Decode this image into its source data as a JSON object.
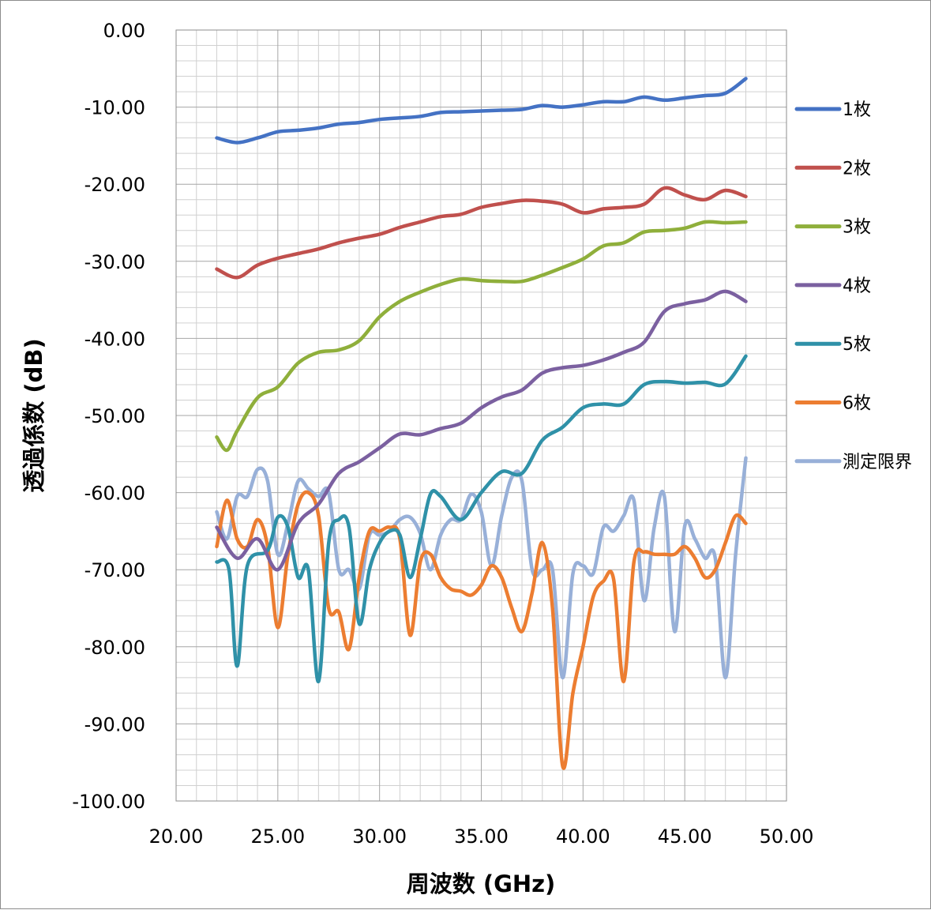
{
  "chart_data": {
    "type": "line",
    "xlabel": "周波数 (GHz)",
    "ylabel": "透過係数 (dB)",
    "xlim": [
      20,
      50
    ],
    "ylim": [
      -100,
      0
    ],
    "x_ticks": [
      "20.00",
      "25.00",
      "30.00",
      "35.00",
      "40.00",
      "45.00",
      "50.00"
    ],
    "y_ticks": [
      "0.00",
      "-10.00",
      "-20.00",
      "-30.00",
      "-40.00",
      "-50.00",
      "-60.00",
      "-70.00",
      "-80.00",
      "-90.00",
      "-100.00"
    ],
    "grid": true,
    "legend_position": "right",
    "series": [
      {
        "name": "1枚",
        "color": "#4472c4",
        "points": [
          [
            22,
            -14
          ],
          [
            23,
            -14.6
          ],
          [
            24,
            -14
          ],
          [
            25,
            -13.2
          ],
          [
            26,
            -13
          ],
          [
            27,
            -12.7
          ],
          [
            28,
            -12.2
          ],
          [
            29,
            -12
          ],
          [
            30,
            -11.6
          ],
          [
            31,
            -11.4
          ],
          [
            32,
            -11.2
          ],
          [
            33,
            -10.7
          ],
          [
            34,
            -10.6
          ],
          [
            35,
            -10.5
          ],
          [
            36,
            -10.4
          ],
          [
            37,
            -10.3
          ],
          [
            38,
            -9.8
          ],
          [
            39,
            -10
          ],
          [
            40,
            -9.7
          ],
          [
            41,
            -9.3
          ],
          [
            42,
            -9.3
          ],
          [
            43,
            -8.7
          ],
          [
            44,
            -9.1
          ],
          [
            45,
            -8.8
          ],
          [
            46,
            -8.5
          ],
          [
            47,
            -8.2
          ],
          [
            48,
            -6.3
          ]
        ]
      },
      {
        "name": "2枚",
        "color": "#c0504d",
        "points": [
          [
            22,
            -31
          ],
          [
            23,
            -32.1
          ],
          [
            24,
            -30.5
          ],
          [
            25,
            -29.6
          ],
          [
            26,
            -29
          ],
          [
            27,
            -28.4
          ],
          [
            28,
            -27.6
          ],
          [
            29,
            -27
          ],
          [
            30,
            -26.5
          ],
          [
            31,
            -25.6
          ],
          [
            32,
            -24.9
          ],
          [
            33,
            -24.2
          ],
          [
            34,
            -23.9
          ],
          [
            35,
            -23
          ],
          [
            36,
            -22.5
          ],
          [
            37,
            -22.1
          ],
          [
            38,
            -22.2
          ],
          [
            39,
            -22.6
          ],
          [
            40,
            -23.7
          ],
          [
            41,
            -23.2
          ],
          [
            42,
            -23
          ],
          [
            43,
            -22.6
          ],
          [
            44,
            -20.5
          ],
          [
            45,
            -21.4
          ],
          [
            46,
            -22
          ],
          [
            47,
            -20.8
          ],
          [
            48,
            -21.6
          ]
        ]
      },
      {
        "name": "3枚",
        "color": "#8faf3b",
        "points": [
          [
            22,
            -52.8
          ],
          [
            22.5,
            -54.5
          ],
          [
            23,
            -52
          ],
          [
            24,
            -47.7
          ],
          [
            25,
            -46.3
          ],
          [
            26,
            -43.2
          ],
          [
            27,
            -41.8
          ],
          [
            28,
            -41.5
          ],
          [
            29,
            -40.3
          ],
          [
            30,
            -37.2
          ],
          [
            31,
            -35.2
          ],
          [
            32,
            -34
          ],
          [
            33,
            -33
          ],
          [
            34,
            -32.3
          ],
          [
            35,
            -32.5
          ],
          [
            36,
            -32.6
          ],
          [
            37,
            -32.6
          ],
          [
            38,
            -31.8
          ],
          [
            39,
            -30.8
          ],
          [
            40,
            -29.7
          ],
          [
            41,
            -28
          ],
          [
            42,
            -27.6
          ],
          [
            43,
            -26.2
          ],
          [
            44,
            -26
          ],
          [
            45,
            -25.7
          ],
          [
            46,
            -24.9
          ],
          [
            47,
            -25
          ],
          [
            48,
            -24.9
          ]
        ]
      },
      {
        "name": "4枚",
        "color": "#7b60a0",
        "points": [
          [
            22,
            -64.5
          ],
          [
            23,
            -68.5
          ],
          [
            24,
            -66
          ],
          [
            25,
            -70
          ],
          [
            26,
            -64
          ],
          [
            27,
            -61.5
          ],
          [
            28,
            -57.5
          ],
          [
            29,
            -56
          ],
          [
            30,
            -54.2
          ],
          [
            31,
            -52.4
          ],
          [
            32,
            -52.5
          ],
          [
            33,
            -51.7
          ],
          [
            34,
            -51
          ],
          [
            35,
            -49
          ],
          [
            36,
            -47.6
          ],
          [
            37,
            -46.7
          ],
          [
            38,
            -44.5
          ],
          [
            39,
            -43.8
          ],
          [
            40,
            -43.5
          ],
          [
            41,
            -42.8
          ],
          [
            42,
            -41.8
          ],
          [
            43,
            -40.5
          ],
          [
            44,
            -36.5
          ],
          [
            45,
            -35.5
          ],
          [
            46,
            -35
          ],
          [
            47,
            -33.9
          ],
          [
            48,
            -35.2
          ]
        ]
      },
      {
        "name": "5枚",
        "color": "#2f91a8",
        "points": [
          [
            22,
            -69
          ],
          [
            22.6,
            -70
          ],
          [
            23,
            -82.5
          ],
          [
            23.5,
            -69.5
          ],
          [
            24.5,
            -67.5
          ],
          [
            25,
            -63.2
          ],
          [
            25.5,
            -64.5
          ],
          [
            26,
            -71
          ],
          [
            26.5,
            -70
          ],
          [
            27,
            -84.5
          ],
          [
            27.5,
            -66.5
          ],
          [
            28,
            -63.5
          ],
          [
            28.5,
            -64.5
          ],
          [
            29,
            -77
          ],
          [
            29.5,
            -70
          ],
          [
            30,
            -66.5
          ],
          [
            30.5,
            -65
          ],
          [
            31,
            -65.5
          ],
          [
            31.5,
            -71
          ],
          [
            32,
            -66
          ],
          [
            32.5,
            -60.2
          ],
          [
            33,
            -60.5
          ],
          [
            34,
            -63.5
          ],
          [
            35,
            -60
          ],
          [
            36,
            -57.3
          ],
          [
            37,
            -57.5
          ],
          [
            38,
            -53.2
          ],
          [
            39,
            -51.5
          ],
          [
            40,
            -49
          ],
          [
            41,
            -48.5
          ],
          [
            42,
            -48.5
          ],
          [
            43,
            -46
          ],
          [
            44,
            -45.6
          ],
          [
            45,
            -45.8
          ],
          [
            46,
            -45.7
          ],
          [
            47,
            -45.9
          ],
          [
            48,
            -42.3
          ]
        ]
      },
      {
        "name": "6枚",
        "color": "#ec7d31",
        "points": [
          [
            22,
            -67
          ],
          [
            22.5,
            -61
          ],
          [
            23,
            -66
          ],
          [
            23.5,
            -67
          ],
          [
            24,
            -63.5
          ],
          [
            24.5,
            -67
          ],
          [
            25,
            -77.5
          ],
          [
            25.5,
            -68
          ],
          [
            26,
            -61.5
          ],
          [
            26.5,
            -60
          ],
          [
            27,
            -63
          ],
          [
            27.5,
            -75
          ],
          [
            28,
            -75.5
          ],
          [
            28.5,
            -80.3
          ],
          [
            29,
            -71
          ],
          [
            29.5,
            -65
          ],
          [
            30,
            -65
          ],
          [
            30.5,
            -64.5
          ],
          [
            31,
            -66
          ],
          [
            31.5,
            -78.5
          ],
          [
            32,
            -69
          ],
          [
            32.5,
            -68
          ],
          [
            33,
            -71
          ],
          [
            33.5,
            -72.5
          ],
          [
            34,
            -72.8
          ],
          [
            34.5,
            -73.3
          ],
          [
            35,
            -72
          ],
          [
            35.5,
            -69.5
          ],
          [
            36,
            -71
          ],
          [
            36.5,
            -75
          ],
          [
            37,
            -78
          ],
          [
            37.5,
            -73
          ],
          [
            38,
            -66.5
          ],
          [
            38.5,
            -75
          ],
          [
            39,
            -95.5
          ],
          [
            39.5,
            -86
          ],
          [
            40,
            -80
          ],
          [
            40.5,
            -73.5
          ],
          [
            41,
            -71.5
          ],
          [
            41.5,
            -71.2
          ],
          [
            42,
            -84.5
          ],
          [
            42.5,
            -69
          ],
          [
            43,
            -67.7
          ],
          [
            43.5,
            -68
          ],
          [
            44,
            -68
          ],
          [
            44.5,
            -68
          ],
          [
            45,
            -67
          ],
          [
            45.5,
            -68.5
          ],
          [
            46,
            -71
          ],
          [
            46.5,
            -70
          ],
          [
            47,
            -66.5
          ],
          [
            47.5,
            -63
          ],
          [
            48,
            -64
          ]
        ]
      },
      {
        "name": "測定限界",
        "color": "#98b0d8",
        "points": [
          [
            22,
            -62.5
          ],
          [
            22.5,
            -66
          ],
          [
            23,
            -60.5
          ],
          [
            23.5,
            -60.5
          ],
          [
            24,
            -57
          ],
          [
            24.5,
            -58.5
          ],
          [
            25,
            -68
          ],
          [
            25.5,
            -64
          ],
          [
            26,
            -58.5
          ],
          [
            26.5,
            -59.5
          ],
          [
            27,
            -60.5
          ],
          [
            27.5,
            -60
          ],
          [
            28,
            -70
          ],
          [
            28.5,
            -70
          ],
          [
            29,
            -72.5
          ],
          [
            29.5,
            -65.5
          ],
          [
            30,
            -65.5
          ],
          [
            30.5,
            -65
          ],
          [
            31,
            -63.5
          ],
          [
            31.5,
            -63.2
          ],
          [
            32,
            -65.3
          ],
          [
            32.5,
            -70
          ],
          [
            33,
            -65.5
          ],
          [
            33.5,
            -63.5
          ],
          [
            34,
            -63.5
          ],
          [
            34.5,
            -60.2
          ],
          [
            35,
            -62.5
          ],
          [
            35.5,
            -69.5
          ],
          [
            36,
            -63
          ],
          [
            36.5,
            -58
          ],
          [
            37,
            -58.5
          ],
          [
            37.5,
            -70
          ],
          [
            38,
            -70
          ],
          [
            38.5,
            -70
          ],
          [
            39,
            -84
          ],
          [
            39.5,
            -70.5
          ],
          [
            40,
            -69.5
          ],
          [
            40.5,
            -70.5
          ],
          [
            41,
            -64.5
          ],
          [
            41.5,
            -65
          ],
          [
            42,
            -63
          ],
          [
            42.5,
            -61
          ],
          [
            43,
            -74
          ],
          [
            43.5,
            -64.5
          ],
          [
            44,
            -60.5
          ],
          [
            44.5,
            -78
          ],
          [
            45,
            -64.3
          ],
          [
            45.5,
            -66
          ],
          [
            46,
            -68.5
          ],
          [
            46.5,
            -68.5
          ],
          [
            47,
            -84
          ],
          [
            47.5,
            -68
          ],
          [
            48,
            -55.5
          ]
        ]
      }
    ]
  }
}
